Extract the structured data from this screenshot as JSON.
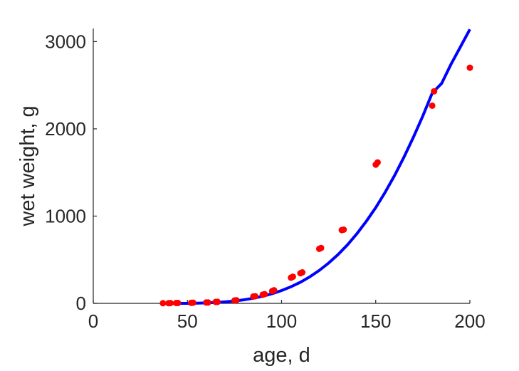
{
  "chart_data": {
    "type": "scatter",
    "title": "",
    "xlabel": "age, d",
    "ylabel": "wet weight, g",
    "xlim": [
      0,
      200
    ],
    "ylim": [
      0,
      3150
    ],
    "xticks": [
      0,
      50,
      100,
      150,
      200
    ],
    "yticks": [
      0,
      1000,
      2000,
      3000
    ],
    "grid": false,
    "legend": "none",
    "colors": {
      "points": "#ff0000",
      "fit": "#0000ff",
      "axis": "#262626"
    },
    "series": [
      {
        "type": "scatter",
        "x": [
          37,
          40,
          41,
          44,
          45,
          52,
          53,
          60,
          61,
          65,
          66,
          75,
          76,
          85,
          86,
          90,
          91,
          95,
          96,
          105,
          106,
          110,
          111,
          120,
          121,
          132,
          133,
          150,
          151,
          180,
          181,
          200
        ],
        "y": [
          2,
          2,
          3,
          4,
          4,
          6,
          7,
          10,
          11,
          16,
          17,
          33,
          36,
          78,
          82,
          100,
          105,
          140,
          150,
          295,
          305,
          345,
          355,
          625,
          635,
          840,
          845,
          1590,
          1615,
          2265,
          2430,
          2700
        ]
      },
      {
        "type": "line",
        "x": [
          38,
          45,
          50,
          55,
          60,
          65,
          70,
          75,
          80,
          85,
          90,
          95,
          100,
          105,
          110,
          115,
          120,
          125,
          130,
          135,
          140,
          145,
          150,
          155,
          160,
          165,
          170,
          175,
          180,
          185,
          190,
          195,
          200
        ],
        "y": [
          0,
          0,
          0,
          2,
          5,
          10,
          17,
          27,
          41,
          59,
          82,
          111,
          147,
          190,
          242,
          304,
          377,
          462,
          560,
          671,
          798,
          940,
          1098,
          1273,
          1465,
          1675,
          1902,
          2147,
          2410,
          2520,
          2740,
          2940,
          3140
        ]
      }
    ]
  }
}
